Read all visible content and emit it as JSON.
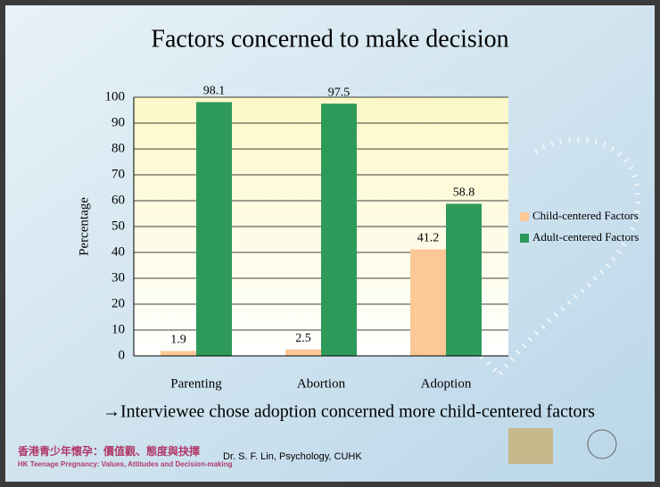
{
  "chart_data": {
    "type": "bar",
    "title": "Factors concerned to make decision",
    "y_label": "Percentage",
    "categories": [
      "Parenting",
      "Abortion",
      "Adoption"
    ],
    "series": [
      {
        "name": "Child-centered Factors",
        "color": "#fcc896",
        "values": [
          1.9,
          2.5,
          41.2
        ]
      },
      {
        "name": "Adult-centered Factors",
        "color": "#2e9a5a",
        "values": [
          98.1,
          97.5,
          58.8
        ]
      }
    ],
    "ylim": [
      0,
      100
    ],
    "yticks": [
      0,
      10,
      20,
      30,
      40,
      50,
      60,
      70,
      80,
      90,
      100
    ],
    "grid": true,
    "legend": "right"
  },
  "note": "→Interviewee chose adoption concerned more child-centered factors",
  "footer": {
    "project_zh": "香港青少年懷孕：價值觀、態度與抉擇",
    "project_en": "HK Teenage Pregnancy: Values, Attitudes and Decision-making",
    "credit": "Dr. S. F. Lin, Psychology, CUHK"
  }
}
